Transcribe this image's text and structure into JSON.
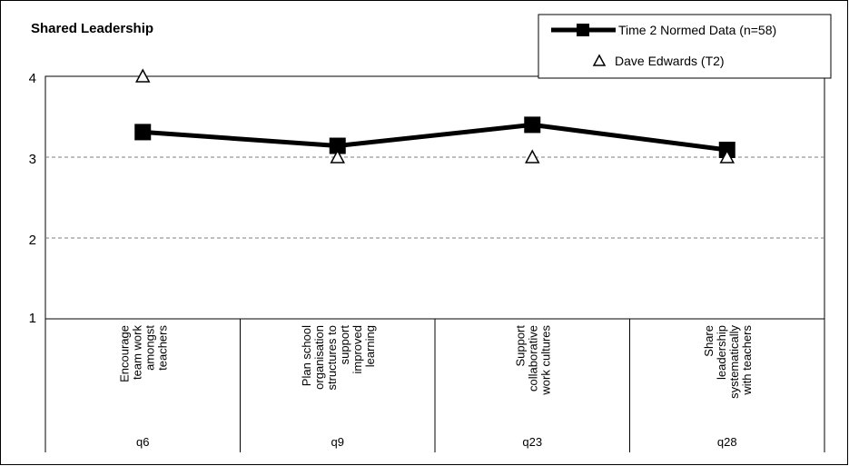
{
  "chart_data": {
    "type": "line",
    "title": "Shared Leadership",
    "categories": [
      {
        "label": "Encourage team work amongst teachers",
        "lines": [
          "Encourage",
          "team work",
          "amongst",
          "teachers"
        ],
        "code": "q6"
      },
      {
        "label": "Plan school organisation structures to support improved learning",
        "lines": [
          "Plan school",
          "organisation",
          "structures to",
          "support",
          "improved",
          "learning"
        ],
        "code": "q9"
      },
      {
        "label": "Support collaborative work cultures",
        "lines": [
          "Support",
          "collaborative",
          "work cultures"
        ],
        "code": "q23"
      },
      {
        "label": "Share leadership systematically with teachers",
        "lines": [
          "Share",
          "leadership",
          "systematically",
          "with teachers"
        ],
        "code": "q28"
      }
    ],
    "series": [
      {
        "name": "Time 2 Normed Data (n=58)",
        "marker": "square",
        "line": true,
        "color": "#000000",
        "values": [
          3.31,
          3.14,
          3.4,
          3.09
        ]
      },
      {
        "name": "Dave Edwards (T2)",
        "marker": "triangle",
        "line": false,
        "color": "#000000",
        "values": [
          4,
          3,
          3,
          3
        ]
      }
    ],
    "ylim": [
      1,
      4
    ],
    "yticks": [
      1,
      2,
      3,
      4
    ],
    "grid": "horizontal dashed at 2 and 3",
    "legend": "top-right"
  }
}
